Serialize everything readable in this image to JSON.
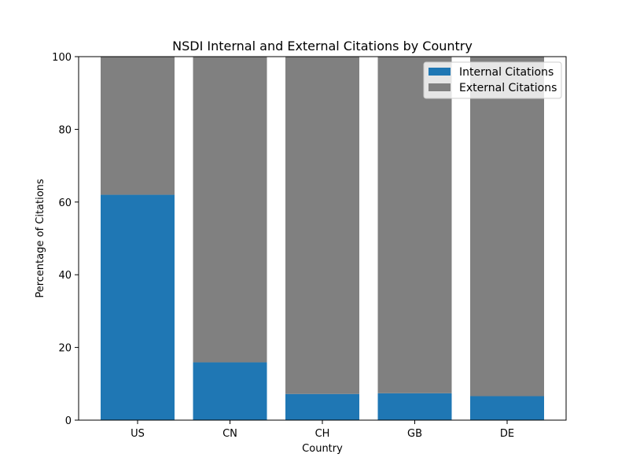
{
  "chart_data": {
    "type": "bar",
    "stacked": true,
    "title": "NSDI Internal and External Citations by Country",
    "xlabel": "Country",
    "ylabel": "Percentage of Citations",
    "categories": [
      "US",
      "CN",
      "CH",
      "GB",
      "DE"
    ],
    "series": [
      {
        "name": "Internal Citations",
        "values": [
          62.0,
          15.9,
          7.2,
          7.4,
          6.6
        ],
        "color": "#1f77b4"
      },
      {
        "name": "External Citations",
        "values": [
          38.0,
          84.1,
          92.8,
          92.6,
          93.4
        ],
        "color": "#808080"
      }
    ],
    "ylim": [
      0,
      100
    ],
    "yticks": [
      0,
      20,
      40,
      60,
      80,
      100
    ],
    "grid": false,
    "legend_position": "top-right"
  }
}
